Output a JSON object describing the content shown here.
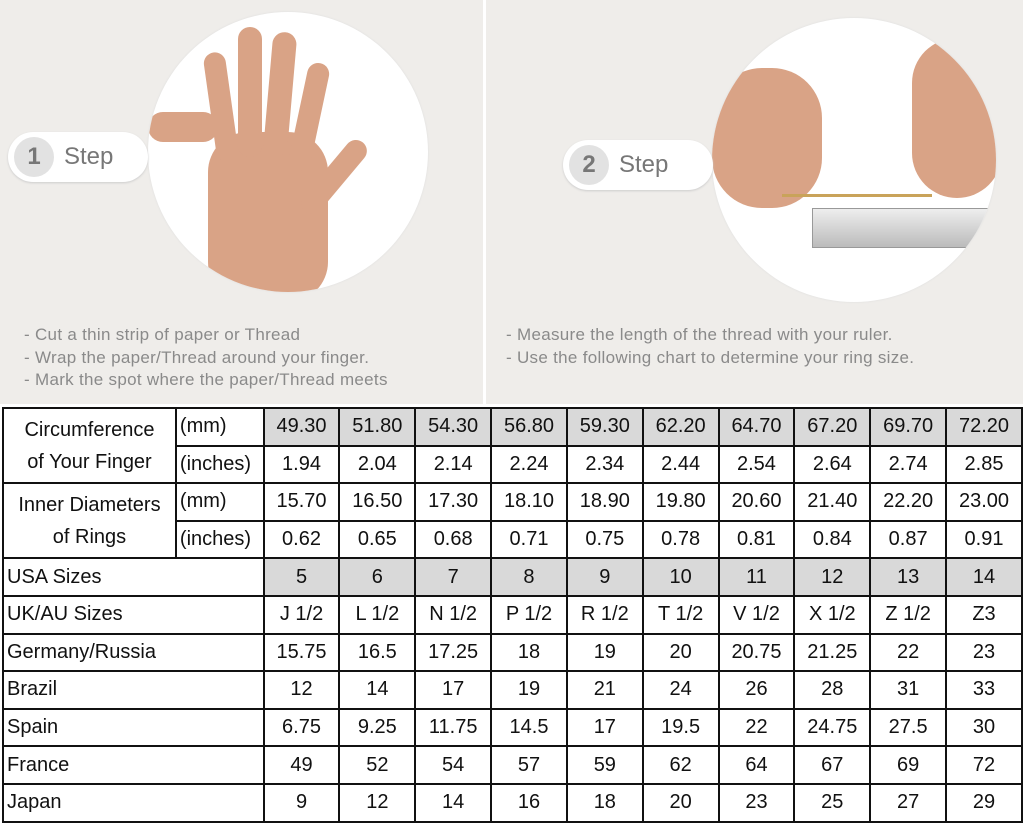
{
  "step1": {
    "number": "1",
    "label": "Step",
    "instructions": [
      "- Cut a thin strip of paper or Thread",
      "- Wrap the paper/Thread around your finger.",
      "- Mark the spot where the paper/Thread meets"
    ]
  },
  "step2": {
    "number": "2",
    "label": "Step",
    "instructions": [
      "- Measure the length of the thread with your ruler.",
      "- Use the following chart to determine your ring size."
    ]
  },
  "table": {
    "circumference": {
      "label_line1": "Circumference",
      "label_line2": "of Your Finger",
      "unit_mm": "(mm)",
      "unit_in": "(inches)",
      "mm": [
        "49.30",
        "51.80",
        "54.30",
        "56.80",
        "59.30",
        "62.20",
        "64.70",
        "67.20",
        "69.70",
        "72.20"
      ],
      "inches": [
        "1.94",
        "2.04",
        "2.14",
        "2.24",
        "2.34",
        "2.44",
        "2.54",
        "2.64",
        "2.74",
        "2.85"
      ]
    },
    "inner_diameter": {
      "label_line1": "Inner Diameters",
      "label_line2": "of Rings",
      "unit_mm": "(mm)",
      "unit_in": "(inches)",
      "mm": [
        "15.70",
        "16.50",
        "17.30",
        "18.10",
        "18.90",
        "19.80",
        "20.60",
        "21.40",
        "22.20",
        "23.00"
      ],
      "inches": [
        "0.62",
        "0.65",
        "0.68",
        "0.71",
        "0.75",
        "0.78",
        "0.81",
        "0.84",
        "0.87",
        "0.91"
      ]
    },
    "rows": [
      {
        "label": "USA Sizes",
        "values": [
          "5",
          "6",
          "7",
          "8",
          "9",
          "10",
          "11",
          "12",
          "13",
          "14"
        ]
      },
      {
        "label": "UK/AU Sizes",
        "values": [
          "J 1/2",
          "L 1/2",
          "N 1/2",
          "P 1/2",
          "R 1/2",
          "T 1/2",
          "V 1/2",
          "X 1/2",
          "Z 1/2",
          "Z3"
        ]
      },
      {
        "label": "Germany/Russia",
        "values": [
          "15.75",
          "16.5",
          "17.25",
          "18",
          "19",
          "20",
          "20.75",
          "21.25",
          "22",
          "23"
        ]
      },
      {
        "label": "Brazil",
        "values": [
          "12",
          "14",
          "17",
          "19",
          "21",
          "24",
          "26",
          "28",
          "31",
          "33"
        ]
      },
      {
        "label": "Spain",
        "values": [
          "6.75",
          "9.25",
          "11.75",
          "14.5",
          "17",
          "19.5",
          "22",
          "24.75",
          "27.5",
          "30"
        ]
      },
      {
        "label": "France",
        "values": [
          "49",
          "52",
          "54",
          "57",
          "59",
          "62",
          "64",
          "67",
          "69",
          "72"
        ]
      },
      {
        "label": "Japan",
        "values": [
          "9",
          "12",
          "14",
          "16",
          "18",
          "20",
          "23",
          "25",
          "27",
          "29"
        ]
      }
    ]
  }
}
